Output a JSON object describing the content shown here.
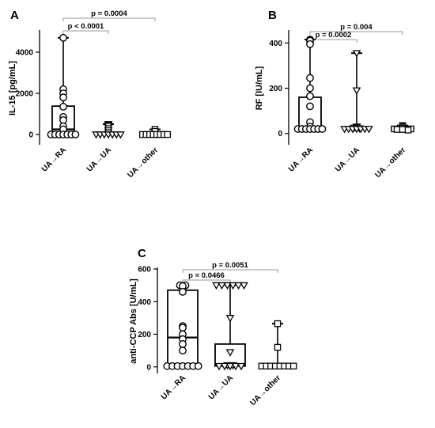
{
  "chart_data": [
    {
      "panel": "A",
      "type": "box",
      "ylabel": "IL-15  [pg/mL]",
      "ylim": [
        -500,
        5000
      ],
      "yticks": [
        0,
        2000,
        4000
      ],
      "categories": [
        "UA→RA",
        "UA→UA",
        "UA→other"
      ],
      "series": [
        {
          "category": "UA→RA",
          "marker": "circle",
          "box": {
            "min": 0,
            "q1": 100,
            "median": 250,
            "q3": 1380,
            "max": 4700
          },
          "points": [
            4700,
            2200,
            2000,
            1800,
            1350,
            850,
            700,
            400,
            250,
            0,
            0,
            0,
            0,
            0,
            0,
            0
          ]
        },
        {
          "category": "UA→UA",
          "marker": "triangle-down",
          "box": {
            "min": 0,
            "q1": 0,
            "median": 0,
            "q3": 80,
            "max": 500
          },
          "points": [
            500,
            450,
            420,
            300,
            200,
            100,
            0,
            0,
            0,
            0,
            0,
            0,
            0
          ]
        },
        {
          "category": "UA→other",
          "marker": "square",
          "box": {
            "min": 0,
            "q1": 0,
            "median": 0,
            "q3": 30,
            "max": 250
          },
          "points": [
            250,
            150,
            0,
            0,
            0,
            0,
            0,
            0,
            0,
            0
          ]
        }
      ],
      "brackets": [
        {
          "label": "p < 0.0001",
          "from": 0,
          "to": 1,
          "level": 1
        },
        {
          "label": "p = 0.0004",
          "from": 0,
          "to": 2,
          "level": 2
        }
      ]
    },
    {
      "panel": "B",
      "type": "box",
      "ylabel": "RF  [IU/mL]",
      "ylim": [
        -50,
        450
      ],
      "yticks": [
        0,
        200,
        400
      ],
      "categories": [
        "UA→RA",
        "UA→UA",
        "UA→other"
      ],
      "series": [
        {
          "category": "UA→RA",
          "marker": "circle",
          "box": {
            "min": 15,
            "q1": 20,
            "median": 30,
            "q3": 160,
            "max": 415
          },
          "points": [
            415,
            410,
            395,
            245,
            200,
            165,
            120,
            50,
            30,
            20,
            20,
            20,
            20,
            20,
            20,
            20
          ]
        },
        {
          "category": "UA→UA",
          "marker": "triangle-down",
          "box": {
            "min": 15,
            "q1": 20,
            "median": 25,
            "q3": 28,
            "max": 355
          },
          "points": [
            355,
            190,
            30,
            28,
            25,
            22,
            20,
            20,
            20,
            20,
            20,
            20,
            20
          ]
        },
        {
          "category": "UA→other",
          "marker": "square",
          "box": {
            "min": 15,
            "q1": 18,
            "median": 20,
            "q3": 25,
            "max": 35
          },
          "points": [
            35,
            30,
            25,
            20,
            20,
            20,
            20,
            18,
            18,
            15
          ]
        }
      ],
      "brackets": [
        {
          "label": "p = 0.0002",
          "from": 0,
          "to": 1,
          "level": 1
        },
        {
          "label": "p = 0.004",
          "from": 0,
          "to": 2,
          "level": 2
        }
      ]
    },
    {
      "panel": "C",
      "type": "box",
      "ylabel": "anti-CCP Abs  [U/mL]",
      "ylim": [
        -40,
        600
      ],
      "yticks": [
        0,
        200,
        400,
        600
      ],
      "categories": [
        "UA→RA",
        "UA→UA",
        "UA→other"
      ],
      "series": [
        {
          "category": "UA→RA",
          "marker": "circle",
          "box": {
            "min": 5,
            "q1": 5,
            "median": 180,
            "q3": 470,
            "max": 500
          },
          "points": [
            500,
            500,
            495,
            460,
            250,
            240,
            200,
            170,
            140,
            100,
            5,
            5,
            5,
            5,
            5,
            5,
            5
          ]
        },
        {
          "category": "UA→UA",
          "marker": "triangle-down",
          "box": {
            "min": 5,
            "q1": 5,
            "median": 10,
            "q3": 140,
            "max": 500
          },
          "points": [
            500,
            500,
            500,
            500,
            500,
            500,
            300,
            90,
            10,
            10,
            5,
            5,
            5,
            5,
            5
          ]
        },
        {
          "category": "UA→other",
          "marker": "square",
          "box": {
            "min": 5,
            "q1": 5,
            "median": 5,
            "q3": 5,
            "max": 265
          },
          "points": [
            265,
            120,
            5,
            5,
            5,
            5,
            5,
            5,
            5,
            5
          ]
        }
      ],
      "brackets": [
        {
          "label": "p = 0.0466",
          "from": 0,
          "to": 1,
          "level": 1
        },
        {
          "label": "p = 0.0051",
          "from": 0,
          "to": 2,
          "level": 2
        }
      ]
    }
  ]
}
